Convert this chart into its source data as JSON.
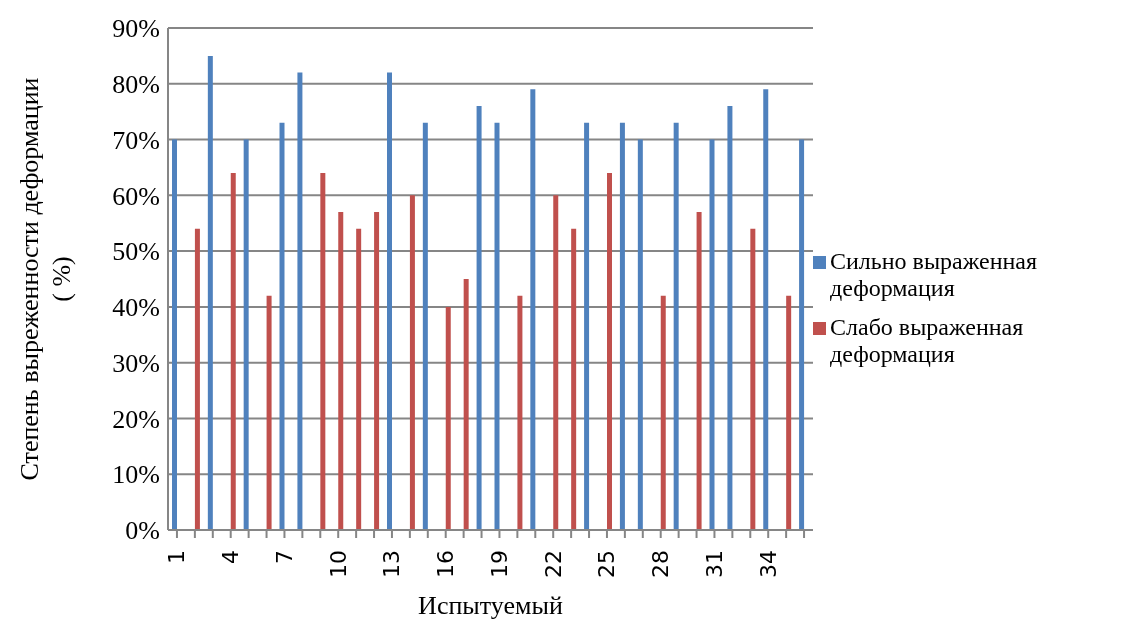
{
  "chart_data": {
    "type": "bar",
    "xlabel": "Испытуемый",
    "ylabel": "Степень выреженности деформации\n( %)",
    "categories": [
      "1",
      null,
      null,
      "4",
      null,
      null,
      "7",
      null,
      null,
      "10",
      null,
      null,
      "13",
      null,
      null,
      "16",
      null,
      null,
      "19",
      null,
      null,
      "22",
      null,
      null,
      "25",
      null,
      null,
      "28",
      null,
      null,
      "31",
      null,
      null,
      "34",
      null,
      null
    ],
    "series": [
      {
        "name": "Сильно выраженная деформация",
        "color": "#4f81bd",
        "values": [
          70,
          null,
          85,
          null,
          70,
          null,
          73,
          82,
          null,
          null,
          null,
          null,
          82,
          null,
          73,
          null,
          null,
          76,
          73,
          null,
          79,
          null,
          null,
          73,
          null,
          73,
          70,
          null,
          73,
          null,
          70,
          76,
          null,
          79,
          null,
          70
        ]
      },
      {
        "name": "Слабо выраженная деформация",
        "color": "#c0504d",
        "values": [
          null,
          54,
          null,
          64,
          null,
          42,
          null,
          null,
          64,
          57,
          54,
          57,
          null,
          60,
          null,
          40,
          45,
          null,
          null,
          42,
          null,
          60,
          54,
          null,
          64,
          null,
          null,
          42,
          null,
          57,
          null,
          null,
          54,
          null,
          42,
          null
        ]
      }
    ],
    "ylim": [
      0,
      90
    ],
    "yticks": [
      {
        "value": 0,
        "label": "0%"
      },
      {
        "value": 10,
        "label": "10%"
      },
      {
        "value": 20,
        "label": "20%"
      },
      {
        "value": 30,
        "label": "30%"
      },
      {
        "value": 40,
        "label": "40%"
      },
      {
        "value": 50,
        "label": "50%"
      },
      {
        "value": 60,
        "label": "60%"
      },
      {
        "value": 70,
        "label": "70%"
      },
      {
        "value": 80,
        "label": "80%"
      },
      {
        "value": 90,
        "label": "90%"
      }
    ],
    "grid": "y",
    "legend": "right"
  }
}
